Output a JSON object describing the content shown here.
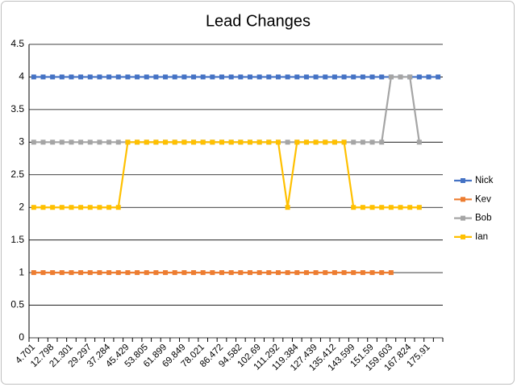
{
  "chart_data": {
    "type": "line",
    "title": "Lead Changes",
    "categories": [
      "4.701",
      null,
      "12.798",
      null,
      "21.301",
      null,
      "29.297",
      null,
      "37.284",
      null,
      "45.429",
      null,
      "53.805",
      null,
      "61.899",
      null,
      "69.849",
      null,
      "78.021",
      null,
      "86.472",
      null,
      "94.582",
      null,
      "102.69",
      null,
      "111.292",
      null,
      "119.384",
      null,
      "127.439",
      null,
      "135.412",
      null,
      "143.599",
      null,
      "151.59",
      null,
      "159.603",
      null,
      "167.824",
      null,
      "175.91",
      null
    ],
    "series": [
      {
        "name": "Nick",
        "color": "#4472c4",
        "values": [
          4,
          4,
          4,
          4,
          4,
          4,
          4,
          4,
          4,
          4,
          4,
          4,
          4,
          4,
          4,
          4,
          4,
          4,
          4,
          4,
          4,
          4,
          4,
          4,
          4,
          4,
          4,
          4,
          4,
          4,
          4,
          4,
          4,
          4,
          4,
          4,
          4,
          4,
          4,
          4,
          4,
          4,
          4,
          4
        ]
      },
      {
        "name": "Kev",
        "color": "#ed7d31",
        "values": [
          1,
          1,
          1,
          1,
          1,
          1,
          1,
          1,
          1,
          1,
          1,
          1,
          1,
          1,
          1,
          1,
          1,
          1,
          1,
          1,
          1,
          1,
          1,
          1,
          1,
          1,
          1,
          1,
          1,
          1,
          1,
          1,
          1,
          1,
          1,
          1,
          1,
          1,
          1,
          null,
          null,
          null,
          null,
          null
        ]
      },
      {
        "name": "Bob",
        "color": "#a5a5a5",
        "values": [
          3,
          3,
          3,
          3,
          3,
          3,
          3,
          3,
          3,
          3,
          3,
          3,
          3,
          3,
          3,
          3,
          3,
          3,
          3,
          3,
          3,
          3,
          3,
          3,
          3,
          3,
          3,
          3,
          3,
          3,
          3,
          3,
          3,
          3,
          3,
          3,
          3,
          3,
          4,
          4,
          4,
          3,
          null,
          null
        ]
      },
      {
        "name": "Ian",
        "color": "#ffc000",
        "values": [
          2,
          2,
          2,
          2,
          2,
          2,
          2,
          2,
          2,
          2,
          3,
          3,
          3,
          3,
          3,
          3,
          3,
          3,
          3,
          3,
          3,
          3,
          3,
          3,
          3,
          3,
          3,
          2,
          3,
          3,
          3,
          3,
          3,
          3,
          2,
          2,
          2,
          2,
          2,
          2,
          2,
          2,
          null,
          null
        ]
      }
    ],
    "ylim": [
      0,
      4.5
    ],
    "yticks": [
      0,
      0.5,
      1,
      1.5,
      2,
      2.5,
      3,
      3.5,
      4,
      4.5
    ],
    "grid": true,
    "legend": "right"
  }
}
